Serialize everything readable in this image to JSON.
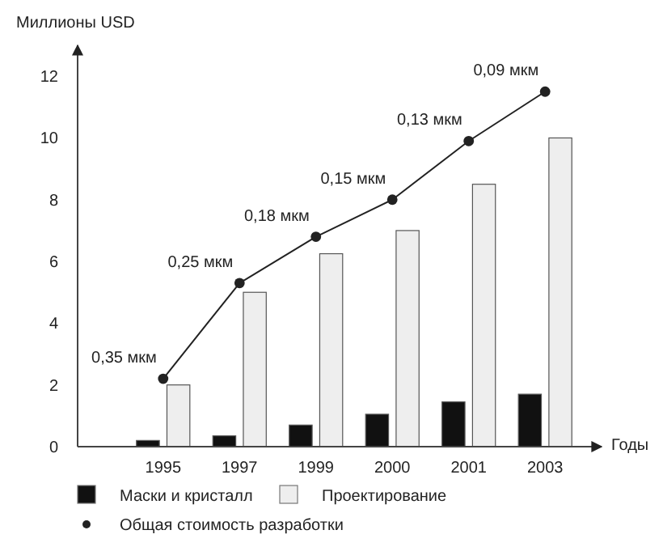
{
  "chart_data": {
    "type": "bar",
    "ylabel": "Миллионы USD",
    "xlabel": "Годы",
    "categories": [
      "1995",
      "1997",
      "1999",
      "2000",
      "2001",
      "2003"
    ],
    "series": [
      {
        "name": "Маски и кристалл",
        "color": "#111111",
        "values": [
          0.2,
          0.35,
          0.7,
          1.05,
          1.45,
          1.7
        ]
      },
      {
        "name": "Проектирование",
        "color": "#eeeeee",
        "values": [
          2,
          5,
          6.25,
          7,
          8.5,
          10
        ]
      },
      {
        "name": "Общая стоимость разработки",
        "type": "line",
        "color": "#222222",
        "marker": "circle",
        "values": [
          2.2,
          5.3,
          6.8,
          8.0,
          9.9,
          11.5
        ]
      }
    ],
    "annotations": [
      {
        "text": "0,35 мкм",
        "x": "1995",
        "y": 2.2
      },
      {
        "text": "0,25 мкм",
        "x": "1997",
        "y": 5.3
      },
      {
        "text": "0,18 мкм",
        "x": "1999",
        "y": 6.8
      },
      {
        "text": "0,15 мкм",
        "x": "2000",
        "y": 8.0
      },
      {
        "text": "0,13 мкм",
        "x": "2001",
        "y": 9.9
      },
      {
        "text": "0,09 мкм",
        "x": "2003",
        "y": 11.5
      }
    ],
    "ylim": [
      0,
      13
    ],
    "yticks": [
      0,
      2,
      4,
      6,
      8,
      10,
      12
    ],
    "grid": false,
    "legend": "bottom"
  }
}
